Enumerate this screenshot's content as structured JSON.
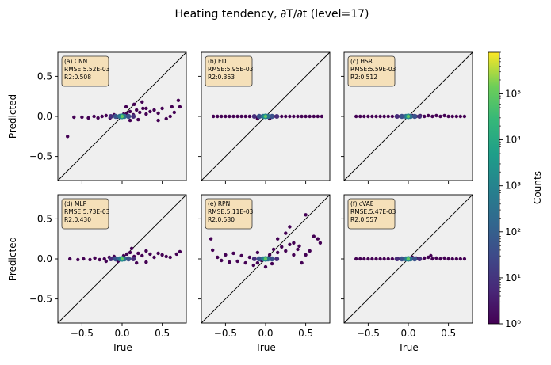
{
  "figure": {
    "title": "Heating tendency, ∂T/∂t (level=17)",
    "colorbar_label": "Counts"
  },
  "chart_data": {
    "type": "hexbin-scatter",
    "title": "Heating tendency, ∂T/∂t (level=17)",
    "xlabel": "True",
    "ylabel": "Predicted",
    "xlim": [
      -0.8,
      0.8
    ],
    "ylim": [
      -0.8,
      0.8
    ],
    "xticks": [
      -0.5,
      0.0,
      0.5
    ],
    "yticks": [
      -0.5,
      0.0,
      0.5
    ],
    "xtick_labels": [
      "−0.5",
      "0.0",
      "0.5"
    ],
    "ytick_labels": [
      "−0.5",
      "0.0",
      "0.5"
    ],
    "reference_line": "y = x",
    "panel_background": "#efefef",
    "colormap": "viridis",
    "colorbar": {
      "label": "Counts",
      "scale": "log",
      "range": [
        1,
        800000
      ],
      "ticks": [
        1,
        10,
        100,
        1000,
        10000,
        100000
      ],
      "tick_labels": [
        "10⁰",
        "10¹",
        "10²",
        "10³",
        "10⁴",
        "10⁵"
      ]
    },
    "panels": [
      {
        "id": "a",
        "annotation": [
          "(a) CNN",
          "RMSE:5.52E-03",
          "R2:0.508"
        ],
        "points": [
          [
            -0.68,
            -0.25
          ],
          [
            -0.6,
            -0.01
          ],
          [
            -0.5,
            -0.01
          ],
          [
            -0.42,
            -0.02
          ],
          [
            -0.35,
            0.0
          ],
          [
            -0.3,
            -0.02
          ],
          [
            -0.25,
            0.0
          ],
          [
            -0.2,
            0.01
          ],
          [
            -0.15,
            -0.02
          ],
          [
            -0.1,
            0.02
          ],
          [
            -0.06,
            -0.01
          ],
          [
            -0.02,
            0.01
          ],
          [
            0.02,
            0.03
          ],
          [
            0.06,
            0.04
          ],
          [
            0.1,
            0.06
          ],
          [
            0.14,
            0.02
          ],
          [
            0.18,
            0.08
          ],
          [
            0.22,
            0.05
          ],
          [
            0.26,
            0.1
          ],
          [
            0.3,
            0.03
          ],
          [
            0.35,
            0.06
          ],
          [
            0.4,
            0.08
          ],
          [
            0.45,
            0.04
          ],
          [
            0.5,
            0.1
          ],
          [
            0.55,
            -0.03
          ],
          [
            0.6,
            0.0
          ],
          [
            0.65,
            0.05
          ],
          [
            0.7,
            0.2
          ],
          [
            0.72,
            0.12
          ],
          [
            0.25,
            0.18
          ],
          [
            0.15,
            0.15
          ],
          [
            0.3,
            0.1
          ],
          [
            0.1,
            -0.05
          ],
          [
            0.2,
            -0.04
          ],
          [
            0.05,
            0.12
          ],
          [
            0.45,
            -0.05
          ],
          [
            0.62,
            0.12
          ]
        ]
      },
      {
        "id": "b",
        "annotation": [
          "(b) ED",
          "RMSE:5.95E-03",
          "R2:0.363"
        ],
        "points": [
          [
            -0.65,
            0.0
          ],
          [
            -0.6,
            0.0
          ],
          [
            -0.55,
            0.0
          ],
          [
            -0.5,
            0.0
          ],
          [
            -0.45,
            0.0
          ],
          [
            -0.4,
            0.0
          ],
          [
            -0.35,
            0.0
          ],
          [
            -0.3,
            0.0
          ],
          [
            -0.25,
            0.0
          ],
          [
            -0.2,
            0.0
          ],
          [
            -0.15,
            0.0
          ],
          [
            -0.1,
            -0.01
          ],
          [
            -0.05,
            0.0
          ],
          [
            0.0,
            -0.01
          ],
          [
            0.05,
            0.0
          ],
          [
            0.1,
            0.0
          ],
          [
            0.15,
            0.0
          ],
          [
            0.2,
            0.0
          ],
          [
            0.25,
            0.0
          ],
          [
            0.3,
            0.0
          ],
          [
            0.35,
            0.0
          ],
          [
            0.4,
            0.0
          ],
          [
            0.45,
            0.0
          ],
          [
            0.5,
            0.0
          ],
          [
            0.55,
            0.0
          ],
          [
            0.6,
            0.0
          ],
          [
            0.65,
            0.0
          ],
          [
            0.7,
            0.0
          ],
          [
            -0.1,
            -0.03
          ],
          [
            0.05,
            -0.03
          ]
        ]
      },
      {
        "id": "c",
        "annotation": [
          "(c) HSR",
          "RMSE:5.59E-03",
          "R2:0.512"
        ],
        "points": [
          [
            -0.65,
            0.0
          ],
          [
            -0.6,
            0.0
          ],
          [
            -0.55,
            0.0
          ],
          [
            -0.5,
            0.0
          ],
          [
            -0.45,
            0.0
          ],
          [
            -0.4,
            0.0
          ],
          [
            -0.35,
            0.0
          ],
          [
            -0.3,
            0.0
          ],
          [
            -0.25,
            0.0
          ],
          [
            -0.2,
            0.0
          ],
          [
            -0.15,
            0.0
          ],
          [
            -0.1,
            0.0
          ],
          [
            -0.05,
            0.0
          ],
          [
            0.05,
            0.01
          ],
          [
            0.1,
            0.0
          ],
          [
            0.15,
            0.01
          ],
          [
            0.2,
            0.0
          ],
          [
            0.25,
            0.01
          ],
          [
            0.3,
            0.0
          ],
          [
            0.35,
            0.01
          ],
          [
            0.4,
            0.0
          ],
          [
            0.45,
            0.01
          ],
          [
            0.5,
            0.0
          ],
          [
            0.55,
            0.0
          ],
          [
            0.6,
            0.0
          ],
          [
            0.65,
            0.0
          ],
          [
            0.7,
            0.0
          ]
        ]
      },
      {
        "id": "d",
        "annotation": [
          "(d) MLP",
          "RMSE:5.73E-03",
          "R2:0.430"
        ],
        "points": [
          [
            -0.65,
            0.0
          ],
          [
            -0.55,
            -0.01
          ],
          [
            -0.48,
            0.0
          ],
          [
            -0.4,
            -0.01
          ],
          [
            -0.34,
            0.01
          ],
          [
            -0.28,
            -0.01
          ],
          [
            -0.22,
            0.0
          ],
          [
            -0.16,
            0.02
          ],
          [
            -0.1,
            0.03
          ],
          [
            -0.05,
            -0.03
          ],
          [
            0.02,
            0.04
          ],
          [
            0.06,
            0.06
          ],
          [
            0.1,
            0.08
          ],
          [
            0.15,
            0.03
          ],
          [
            0.2,
            0.07
          ],
          [
            0.25,
            0.04
          ],
          [
            0.3,
            0.1
          ],
          [
            0.35,
            0.06
          ],
          [
            0.4,
            0.02
          ],
          [
            0.45,
            0.07
          ],
          [
            0.5,
            0.05
          ],
          [
            0.55,
            0.03
          ],
          [
            0.6,
            0.02
          ],
          [
            0.68,
            0.06
          ],
          [
            0.72,
            0.09
          ],
          [
            0.3,
            -0.04
          ],
          [
            0.18,
            -0.05
          ],
          [
            0.12,
            0.13
          ],
          [
            -0.2,
            -0.03
          ]
        ]
      },
      {
        "id": "e",
        "annotation": [
          "(e) RPN",
          "RMSE:5.11E-03",
          "R2:0.580"
        ],
        "points": [
          [
            -0.68,
            0.25
          ],
          [
            -0.66,
            0.11
          ],
          [
            -0.6,
            0.02
          ],
          [
            -0.55,
            -0.02
          ],
          [
            -0.5,
            0.05
          ],
          [
            -0.45,
            -0.04
          ],
          [
            -0.4,
            0.07
          ],
          [
            -0.35,
            -0.03
          ],
          [
            -0.3,
            0.04
          ],
          [
            -0.25,
            -0.05
          ],
          [
            -0.2,
            0.02
          ],
          [
            -0.15,
            -0.08
          ],
          [
            -0.1,
            -0.05
          ],
          [
            -0.05,
            -0.02
          ],
          [
            0.05,
            0.05
          ],
          [
            0.1,
            0.12
          ],
          [
            0.15,
            0.08
          ],
          [
            0.2,
            0.15
          ],
          [
            0.25,
            0.1
          ],
          [
            0.3,
            0.18
          ],
          [
            0.35,
            0.05
          ],
          [
            0.4,
            0.12
          ],
          [
            0.45,
            -0.05
          ],
          [
            0.5,
            0.05
          ],
          [
            0.55,
            0.1
          ],
          [
            0.6,
            0.28
          ],
          [
            0.65,
            0.25
          ],
          [
            0.68,
            0.2
          ],
          [
            0.5,
            0.55
          ],
          [
            0.3,
            0.4
          ],
          [
            0.25,
            0.32
          ],
          [
            0.15,
            0.25
          ],
          [
            0.0,
            -0.1
          ],
          [
            -0.1,
            0.08
          ],
          [
            0.08,
            -0.06
          ],
          [
            0.35,
            0.2
          ],
          [
            0.42,
            0.16
          ]
        ]
      },
      {
        "id": "f",
        "annotation": [
          "(f) cVAE",
          "RMSE:5.47E-03",
          "R2:0.557"
        ],
        "points": [
          [
            -0.65,
            0.0
          ],
          [
            -0.6,
            0.0
          ],
          [
            -0.55,
            0.0
          ],
          [
            -0.5,
            0.0
          ],
          [
            -0.45,
            0.0
          ],
          [
            -0.4,
            0.0
          ],
          [
            -0.35,
            0.0
          ],
          [
            -0.3,
            0.0
          ],
          [
            -0.25,
            0.0
          ],
          [
            -0.2,
            0.0
          ],
          [
            -0.15,
            0.0
          ],
          [
            -0.1,
            0.0
          ],
          [
            -0.05,
            0.0
          ],
          [
            0.05,
            0.02
          ],
          [
            0.1,
            0.01
          ],
          [
            0.15,
            0.0
          ],
          [
            0.2,
            0.01
          ],
          [
            0.25,
            0.02
          ],
          [
            0.3,
            0.0
          ],
          [
            0.35,
            0.01
          ],
          [
            0.4,
            0.0
          ],
          [
            0.45,
            0.01
          ],
          [
            0.5,
            0.0
          ],
          [
            0.55,
            0.0
          ],
          [
            0.6,
            0.0
          ],
          [
            0.65,
            0.0
          ],
          [
            0.7,
            0.0
          ],
          [
            0.28,
            0.04
          ]
        ]
      }
    ]
  }
}
